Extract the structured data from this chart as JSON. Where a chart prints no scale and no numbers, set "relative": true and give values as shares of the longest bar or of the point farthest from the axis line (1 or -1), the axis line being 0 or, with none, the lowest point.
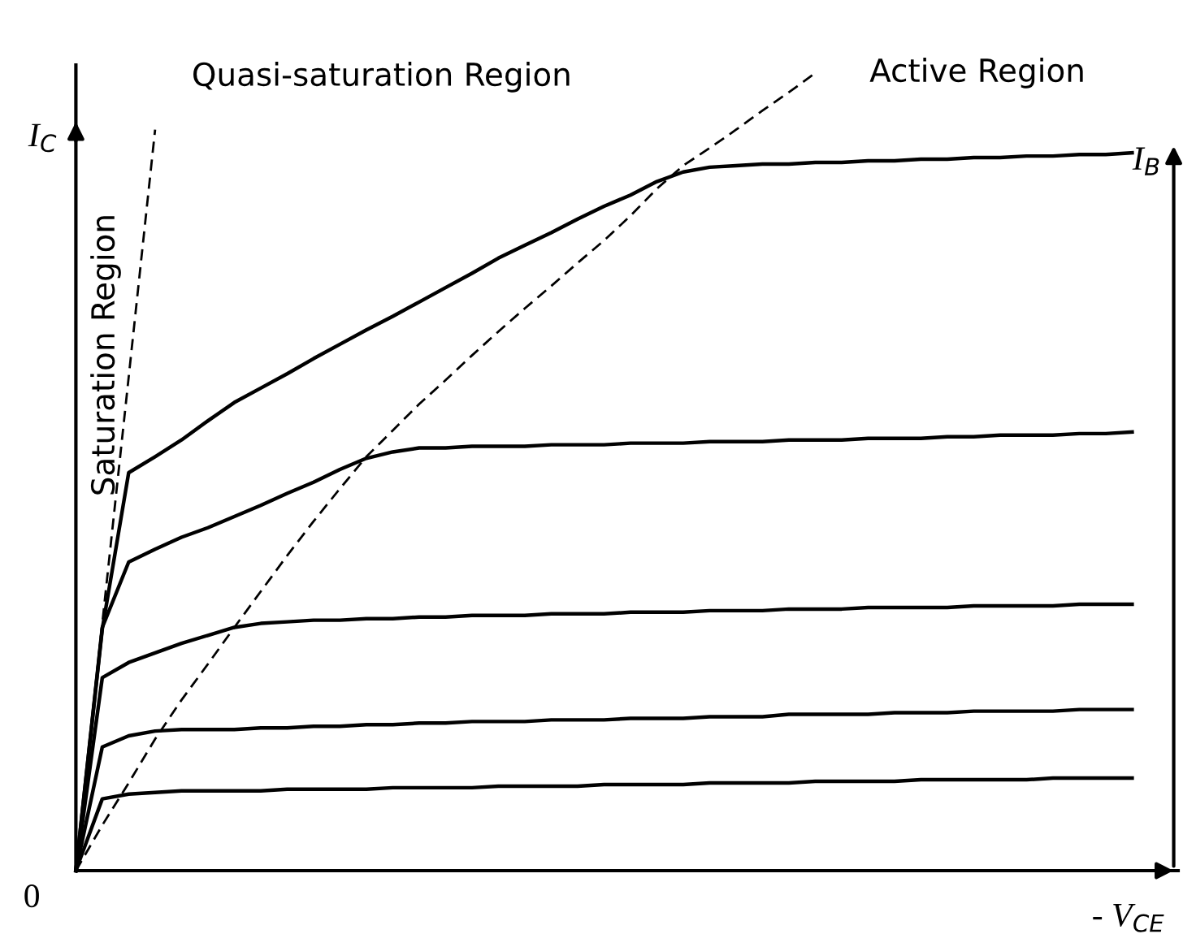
{
  "chart_data": {
    "type": "line",
    "relative": true,
    "xlabel": "- V$_{CE}$",
    "ylabel": "I$_{C}$",
    "marker": "none",
    "annotations": [
      "0",
      "Saturation Region",
      "Quasi-saturation Region",
      "Active Region",
      "I$_{B}$"
    ],
    "categories": [
      null,
      null,
      null,
      null,
      null,
      null,
      null,
      null,
      null,
      null,
      null,
      null,
      null,
      null,
      null,
      null,
      null,
      null,
      null,
      null,
      null,
      null,
      null,
      null,
      null,
      null,
      null,
      null,
      null,
      null,
      null,
      null,
      null,
      null,
      null,
      null,
      null,
      null,
      null,
      null,
      null
    ],
    "series": [
      {
        "color": "#000000",
        "line_style": "solid",
        "values": [
          0,
          0.09,
          0.096,
          0.098,
          0.1,
          0.1,
          0.1,
          0.1,
          0.102,
          0.102,
          0.102,
          0.102,
          0.104,
          0.104,
          0.104,
          0.104,
          0.106,
          0.106,
          0.106,
          0.106,
          0.108,
          0.108,
          0.108,
          0.108,
          0.11,
          0.11,
          0.11,
          0.11,
          0.112,
          0.112,
          0.112,
          0.112,
          0.114,
          0.114,
          0.114,
          0.114,
          0.114,
          0.116,
          0.116,
          0.116,
          0.116
        ]
      },
      {
        "color": "#000000",
        "line_style": "solid",
        "values": [
          0,
          0.155,
          0.169,
          0.175,
          0.177,
          0.177,
          0.177,
          0.179,
          0.179,
          0.181,
          0.181,
          0.183,
          0.183,
          0.185,
          0.185,
          0.187,
          0.187,
          0.187,
          0.189,
          0.189,
          0.189,
          0.191,
          0.191,
          0.191,
          0.193,
          0.193,
          0.193,
          0.196,
          0.196,
          0.196,
          0.196,
          0.198,
          0.198,
          0.198,
          0.2,
          0.2,
          0.2,
          0.2,
          0.202,
          0.202,
          0.202
        ]
      },
      {
        "color": "#000000",
        "line_style": "solid",
        "values": [
          0,
          0.242,
          0.261,
          0.273,
          0.285,
          0.295,
          0.305,
          0.31,
          0.312,
          0.314,
          0.314,
          0.316,
          0.316,
          0.318,
          0.318,
          0.32,
          0.32,
          0.32,
          0.322,
          0.322,
          0.322,
          0.324,
          0.324,
          0.324,
          0.326,
          0.326,
          0.326,
          0.328,
          0.328,
          0.328,
          0.33,
          0.33,
          0.33,
          0.33,
          0.332,
          0.332,
          0.332,
          0.332,
          0.334,
          0.334,
          0.334
        ]
      },
      {
        "color": "#000000",
        "line_style": "solid",
        "values": [
          0,
          0.305,
          0.387,
          0.403,
          0.418,
          0.43,
          0.444,
          0.458,
          0.473,
          0.487,
          0.503,
          0.517,
          0.525,
          0.53,
          0.53,
          0.532,
          0.532,
          0.532,
          0.534,
          0.534,
          0.534,
          0.536,
          0.536,
          0.536,
          0.538,
          0.538,
          0.538,
          0.54,
          0.54,
          0.54,
          0.542,
          0.542,
          0.542,
          0.544,
          0.544,
          0.546,
          0.546,
          0.546,
          0.548,
          0.548,
          0.55
        ]
      },
      {
        "color": "#000000",
        "line_style": "solid",
        "values": [
          0,
          0.303,
          0.499,
          0.519,
          0.54,
          0.564,
          0.587,
          0.605,
          0.623,
          0.642,
          0.66,
          0.678,
          0.695,
          0.713,
          0.731,
          0.749,
          0.768,
          0.784,
          0.8,
          0.817,
          0.833,
          0.847,
          0.864,
          0.876,
          0.882,
          0.884,
          0.886,
          0.886,
          0.888,
          0.888,
          0.89,
          0.89,
          0.892,
          0.892,
          0.894,
          0.894,
          0.896,
          0.896,
          0.898,
          0.898,
          0.9
        ]
      },
      {
        "color": "#000000",
        "line_style": "dashed",
        "values": [
          0,
          0.31,
          0.619,
          0.929,
          null,
          null,
          null,
          null,
          null,
          null,
          null,
          null,
          null,
          null,
          null,
          null,
          null,
          null,
          null,
          null,
          null,
          null,
          null,
          null,
          null,
          null,
          null,
          null,
          null,
          null,
          null,
          null,
          null,
          null,
          null,
          null,
          null,
          null,
          null,
          null,
          null
        ]
      },
      {
        "color": "#000000",
        "line_style": "dashed",
        "values": [
          0,
          0.057,
          0.11,
          0.165,
          0.214,
          0.259,
          0.305,
          0.35,
          0.395,
          0.438,
          0.479,
          0.519,
          0.552,
          0.585,
          0.615,
          0.646,
          0.676,
          0.705,
          0.733,
          0.762,
          0.79,
          0.821,
          0.855,
          0.884,
          0.906,
          0.929,
          0.953,
          0.976,
          1,
          null,
          null,
          null,
          null,
          null,
          null,
          null,
          null,
          null,
          null,
          null,
          null
        ]
      }
    ]
  }
}
